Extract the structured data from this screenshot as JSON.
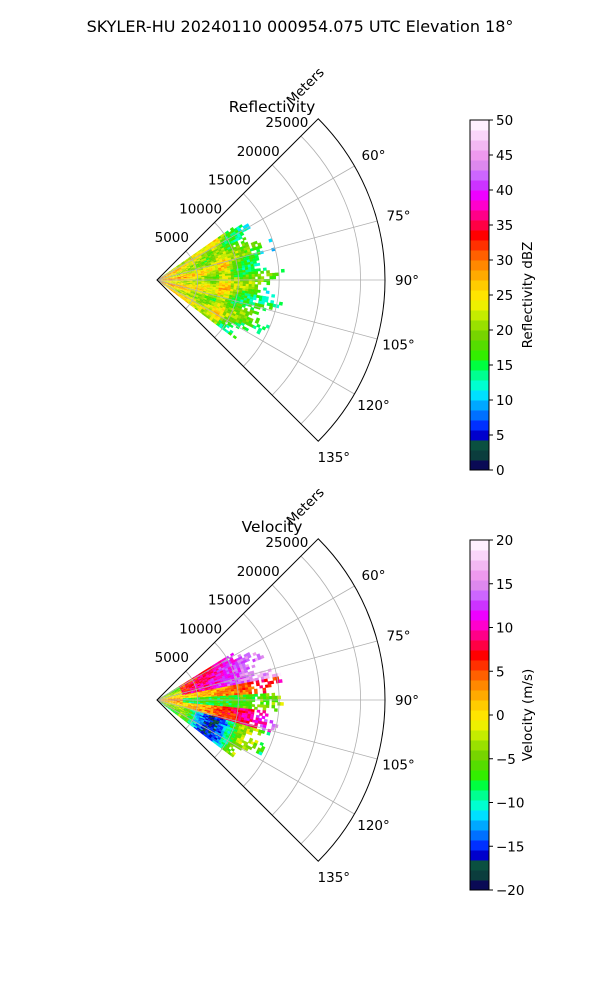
{
  "figure": {
    "suptitle": "SKYLER-HU  20240110  000954.075 UTC Elevation 18°"
  },
  "chart_data": [
    {
      "type": "heatmap",
      "subtype": "polar-sector",
      "title": "Reflectivity",
      "radial_label": "Meters",
      "r_ticks": [
        5000,
        10000,
        15000,
        20000,
        25000
      ],
      "r_tick_labels": [
        "5000",
        "10000",
        "15000",
        "20000",
        "25000"
      ],
      "r_max": 28000,
      "theta_ticks_deg": [
        60,
        75,
        90,
        105,
        120,
        135
      ],
      "theta_tick_labels": [
        "60°",
        "75°",
        "90°",
        "105°",
        "120°",
        "135°"
      ],
      "theta_range_deg": [
        45,
        135
      ],
      "grid": true,
      "data_extent": {
        "theta_deg": [
          55,
          127
        ],
        "r_max_m": 16000
      },
      "colorbar": {
        "label": "Reflectivity dBZ",
        "range": [
          0,
          50
        ],
        "ticks": [
          0,
          5,
          10,
          15,
          20,
          25,
          30,
          35,
          40,
          45,
          50
        ],
        "tick_labels": [
          "0",
          "5",
          "10",
          "15",
          "20",
          "25",
          "30",
          "35",
          "40",
          "45",
          "50"
        ],
        "colors": [
          "#0a0a55",
          "#0b3d3d",
          "#0a5040",
          "#0000cc",
          "#0030ff",
          "#0070ff",
          "#00a8ff",
          "#00e0ff",
          "#00ffd0",
          "#00ff90",
          "#00ff40",
          "#33ee00",
          "#55dd00",
          "#77d400",
          "#99e000",
          "#c4ec00",
          "#eef000",
          "#ffe500",
          "#ffcc00",
          "#ffaa00",
          "#ff8800",
          "#ff6000",
          "#ff3000",
          "#ff0000",
          "#ff0044",
          "#ff0088",
          "#ff00cc",
          "#ee00ff",
          "#cc33ff",
          "#cc66ff",
          "#dd88ee",
          "#ee99ee",
          "#f3b8f3",
          "#fad6fa",
          "#fff0ff"
        ]
      }
    },
    {
      "type": "heatmap",
      "subtype": "polar-sector",
      "title": "Velocity",
      "radial_label": "Meters",
      "r_ticks": [
        5000,
        10000,
        15000,
        20000,
        25000
      ],
      "r_tick_labels": [
        "5000",
        "10000",
        "15000",
        "20000",
        "25000"
      ],
      "r_max": 28000,
      "theta_ticks_deg": [
        60,
        75,
        90,
        105,
        120,
        135
      ],
      "theta_tick_labels": [
        "60°",
        "75°",
        "90°",
        "105°",
        "120°",
        "135°"
      ],
      "theta_range_deg": [
        45,
        135
      ],
      "grid": true,
      "data_extent": {
        "theta_deg": [
          58,
          127
        ],
        "r_max_m": 15500
      },
      "colorbar": {
        "label": "Velocity (m/s)",
        "range": [
          -20,
          20
        ],
        "ticks": [
          -20,
          -15,
          -10,
          -5,
          0,
          5,
          10,
          15,
          20
        ],
        "tick_labels": [
          "−20",
          "−15",
          "−10",
          "−5",
          "0",
          "5",
          "10",
          "15",
          "20"
        ],
        "colors": [
          "#0a0a55",
          "#0b3d3d",
          "#0a5040",
          "#0000cc",
          "#0030ff",
          "#0070ff",
          "#00a8ff",
          "#00e0ff",
          "#00ffd0",
          "#00ff90",
          "#00ff40",
          "#33ee00",
          "#55dd00",
          "#77d400",
          "#99e000",
          "#c4ec00",
          "#eef000",
          "#ffe500",
          "#ffcc00",
          "#ffaa00",
          "#ff8800",
          "#ff6000",
          "#ff3000",
          "#ff0000",
          "#ff0044",
          "#ff0088",
          "#ff00cc",
          "#ee00ff",
          "#cc33ff",
          "#cc66ff",
          "#dd88ee",
          "#ee99ee",
          "#f3b8f3",
          "#fad6fa",
          "#fff0ff"
        ]
      }
    }
  ]
}
